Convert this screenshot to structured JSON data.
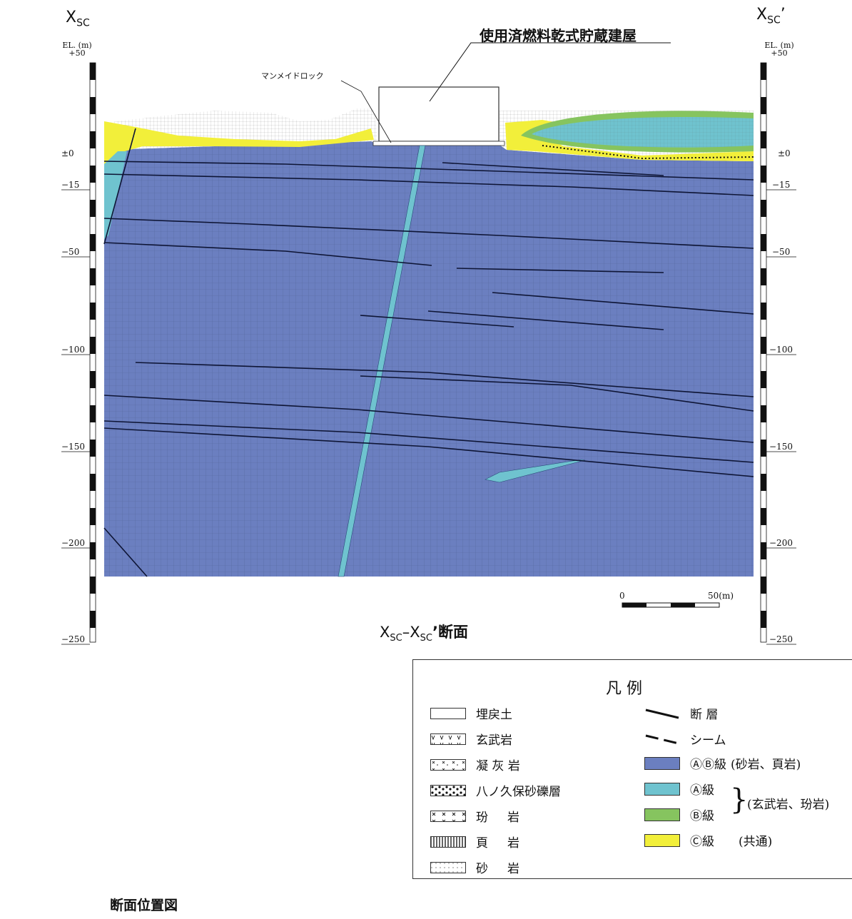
{
  "left_end": {
    "main": "X",
    "sub": "SC"
  },
  "right_end": {
    "main": "X",
    "sub": "SC",
    "prime": "’"
  },
  "el_unit": "EL. (m)",
  "ticks_left": [
    "+50",
    "±0",
    "−15",
    "−50",
    "−100",
    "−150",
    "−200",
    "−250"
  ],
  "ticks_right": [
    "+50",
    "±0",
    "−15",
    "−50",
    "−100",
    "−150",
    "−200",
    "−250"
  ],
  "building_label": "使用済燃料乾式貯蔵建屋",
  "manmade_rock_label": "マンメイドロック",
  "scale": {
    "zero": "0",
    "fifty": "50(m)"
  },
  "section_title": {
    "a": "X",
    "a_sub": "SC",
    "dash": "–",
    "b": "X",
    "b_sub": "SC",
    "suffix": "’断面"
  },
  "location_map_label": "断面位置図",
  "legend": {
    "title": "凡 例",
    "left_items": [
      {
        "label": "埋戻土",
        "pattern": "blank"
      },
      {
        "label": "玄武岩",
        "pattern": "v"
      },
      {
        "label": "凝 灰 岩",
        "pattern": "x-dots"
      },
      {
        "label": "八ノ久保砂礫層",
        "pattern": "dots"
      },
      {
        "label": "玢     岩",
        "pattern": "x"
      },
      {
        "label": "頁     岩",
        "pattern": "vlines"
      },
      {
        "label": "砂     岩",
        "pattern": "fine-dots"
      }
    ],
    "fault": "断 層",
    "seam": "シーム",
    "ab_class": "ⒶⒷ級",
    "ab_note": "(砂岩、頁岩)",
    "a_class": "Ⓐ級",
    "b_class": "Ⓑ級",
    "ab_group_note": "(玄武岩、玢岩)",
    "c_class": "Ⓒ級",
    "c_note": "(共通)"
  },
  "colors": {
    "ab_class": "#6b7fc0",
    "a_class": "#6fc3cf",
    "b_class": "#86c45f",
    "c_class": "#f2ef3a"
  }
}
